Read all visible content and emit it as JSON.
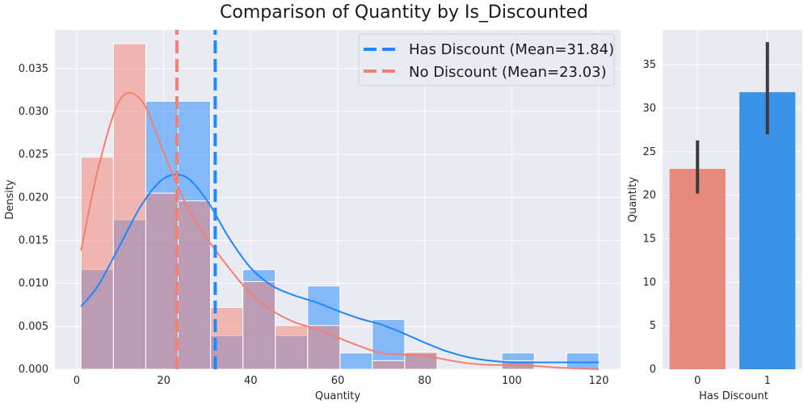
{
  "title": "Comparison of Quantity by Is_Discounted",
  "colors": {
    "background": "#eaeaf2",
    "grid": "#ffffff",
    "has_discount": "#1e88ff",
    "no_discount": "#f47f6f",
    "bar_has_discount": "#3a92e6",
    "bar_no_discount": "#e68a7e",
    "error_bar": "#3b3b3b"
  },
  "chart_data": [
    {
      "type": "histogram",
      "xlabel": "Quantity",
      "ylabel": "Density",
      "xlim": [
        -5,
        125
      ],
      "ylim": [
        0,
        0.0395
      ],
      "x_ticks": [
        "0",
        "20",
        "40",
        "60",
        "80",
        "100",
        "120"
      ],
      "y_ticks": [
        "0.000",
        "0.005",
        "0.010",
        "0.015",
        "0.020",
        "0.025",
        "0.030",
        "0.035"
      ],
      "grid": true,
      "legend_position": "top-right",
      "bins": [
        1,
        8.44,
        15.88,
        23.32,
        30.76,
        38.2,
        45.64,
        53.08,
        60.52,
        67.96,
        75.4,
        82.84,
        90.28,
        97.72,
        105.16,
        112.6,
        120
      ],
      "series": [
        {
          "name": "Has Discount",
          "density": [
            0.0116,
            0.0174,
            0.0312,
            0.0312,
            0.0039,
            0.0116,
            0.0039,
            0.0097,
            0.0019,
            0.0058,
            0.0019,
            0,
            0,
            0.0019,
            0,
            0.0019
          ],
          "kde_x": [
            1,
            5,
            10,
            15,
            20,
            25,
            30,
            35,
            40,
            45,
            50,
            55,
            60,
            65,
            70,
            75,
            80,
            85,
            90,
            95,
            100,
            105,
            110,
            115,
            120
          ],
          "kde_y": [
            0.0073,
            0.0098,
            0.0145,
            0.0192,
            0.0222,
            0.0224,
            0.0196,
            0.0153,
            0.0118,
            0.0097,
            0.0086,
            0.0078,
            0.0068,
            0.0059,
            0.0052,
            0.0042,
            0.0031,
            0.0021,
            0.0014,
            0.001,
            0.0008,
            0.0008,
            0.0008,
            0.0008,
            0.0008
          ]
        },
        {
          "name": "No Discount",
          "density": [
            0.0247,
            0.0379,
            0.0205,
            0.0196,
            0.0072,
            0.0102,
            0.0051,
            0.0051,
            0,
            0.001,
            0.002,
            0,
            0,
            0.001,
            0,
            0
          ],
          "kde_x": [
            1,
            5,
            10,
            15,
            20,
            25,
            30,
            35,
            40,
            45,
            50,
            55,
            60,
            65,
            70,
            75,
            80,
            85,
            90,
            95,
            100,
            105,
            110,
            115,
            120
          ],
          "kde_y": [
            0.0138,
            0.0235,
            0.0314,
            0.0312,
            0.0252,
            0.0193,
            0.0152,
            0.0118,
            0.0088,
            0.0068,
            0.0055,
            0.0047,
            0.0037,
            0.0027,
            0.0019,
            0.0017,
            0.0016,
            0.0011,
            0.0007,
            0.0005,
            0.0005,
            0.0004,
            0.0002,
            0.0001,
            0
          ]
        }
      ],
      "mean_lines": [
        {
          "label": "Has Discount (Mean=31.84)",
          "value": 31.84
        },
        {
          "label": "No Discount (Mean=23.03)",
          "value": 23.03
        }
      ]
    },
    {
      "type": "bar",
      "xlabel": "Has Discount",
      "ylabel": "Quantity",
      "categories": [
        "0",
        "1"
      ],
      "values": [
        23.03,
        31.84
      ],
      "error_low": [
        20.2,
        27.0
      ],
      "error_high": [
        26.3,
        37.6
      ],
      "ylim": [
        0,
        39
      ],
      "y_ticks": [
        "0",
        "5",
        "10",
        "15",
        "20",
        "25",
        "30",
        "35"
      ],
      "grid": true
    }
  ]
}
